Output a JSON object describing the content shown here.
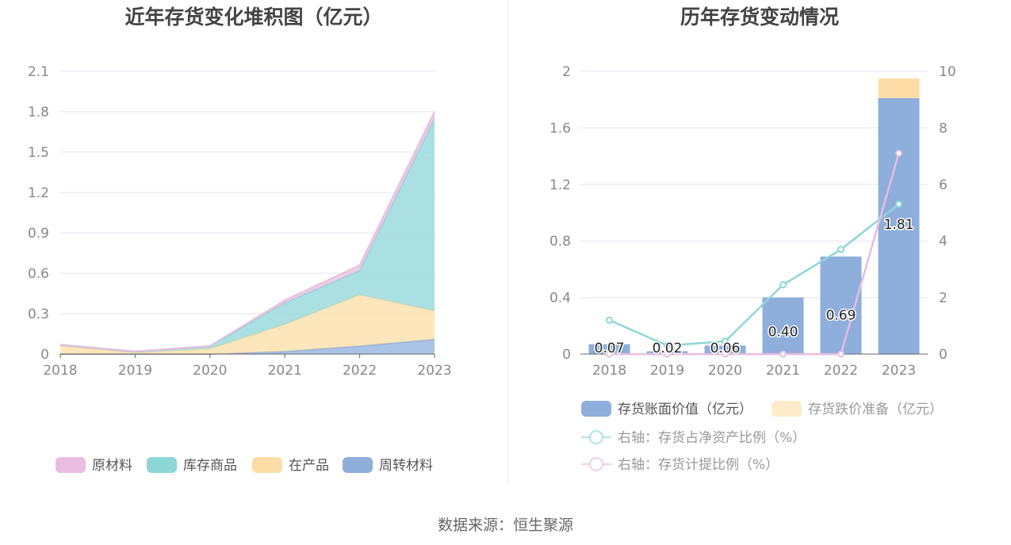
{
  "left": {
    "title": "近年存货变化堆积图（亿元）"
  },
  "right": {
    "title": "历年存货变动情况"
  },
  "footer": "数据来源：恒生聚源",
  "chart_data": [
    {
      "type": "area",
      "stacked": true,
      "title": "近年存货变化堆积图（亿元）",
      "categories": [
        "2018",
        "2019",
        "2020",
        "2021",
        "2022",
        "2023"
      ],
      "ylim": [
        0,
        2.1
      ],
      "yticks": [
        "0",
        "0.3",
        "0.6",
        "0.9",
        "1.2",
        "1.5",
        "1.8",
        "2.1"
      ],
      "grid": true,
      "legend_position": "bottom",
      "series": [
        {
          "name": "周转材料",
          "color": "#8eaedc",
          "values": [
            0.0,
            0.0,
            0.0,
            0.02,
            0.06,
            0.11
          ]
        },
        {
          "name": "在产品",
          "color": "#fddda5",
          "values": [
            0.06,
            0.01,
            0.04,
            0.2,
            0.38,
            0.21
          ]
        },
        {
          "name": "库存商品",
          "color": "#8dd6d8",
          "values": [
            0.01,
            0.01,
            0.02,
            0.16,
            0.18,
            1.43
          ]
        },
        {
          "name": "原材料",
          "color": "#e8bde0",
          "values": [
            0.0,
            0.0,
            0.0,
            0.02,
            0.04,
            0.05
          ]
        }
      ],
      "legend_order": [
        "原材料",
        "库存商品",
        "在产品",
        "周转材料"
      ]
    },
    {
      "type": "bar",
      "title": "历年存货变动情况",
      "categories": [
        "2018",
        "2019",
        "2020",
        "2021",
        "2022",
        "2023"
      ],
      "ylim": [
        0,
        2
      ],
      "yticks": [
        "0",
        "0.4",
        "0.8",
        "1.2",
        "1.6",
        "2"
      ],
      "y2lim": [
        0,
        10
      ],
      "y2ticks": [
        "0",
        "2",
        "4",
        "6",
        "8",
        "10"
      ],
      "grid": true,
      "legend_position": "bottom",
      "bars": [
        {
          "name": "存货账面价值（亿元）",
          "color": "#8eaedc",
          "values": [
            0.07,
            0.02,
            0.06,
            0.4,
            0.69,
            1.81
          ],
          "labels": [
            "0.07",
            "0.02",
            "0.06",
            "0.40",
            "0.69",
            "1.81"
          ]
        },
        {
          "name": "存货跌价准备（亿元）",
          "color": "#fddda5",
          "values": [
            0,
            0,
            0,
            0,
            0,
            0.14
          ]
        }
      ],
      "lines": [
        {
          "name": "右轴：存货占净资产比例（%）",
          "color": "#8dd6d8",
          "values": [
            1.2,
            0.3,
            0.45,
            2.45,
            3.7,
            5.3
          ]
        },
        {
          "name": "右轴：存货计提比例（%）",
          "color": "#e8bde0",
          "values": [
            0,
            0,
            0,
            0,
            0,
            7.1
          ]
        }
      ]
    }
  ]
}
